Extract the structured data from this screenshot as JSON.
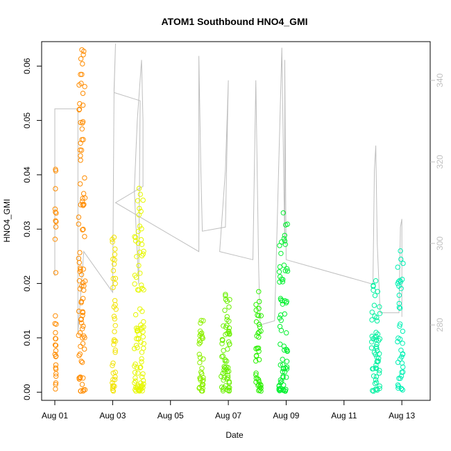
{
  "chart_data": {
    "type": "scatter",
    "title": "ATOM1 Southbound HNO4_GMI",
    "xlabel": "Date",
    "ylabel": "HNO4_GMI",
    "x_ticks": [
      "Aug 01",
      "Aug 03",
      "Aug 05",
      "Aug 07",
      "Aug 09",
      "Aug 11",
      "Aug 13"
    ],
    "y_ticks": [
      "0.00",
      "0.01",
      "0.02",
      "0.03",
      "0.04",
      "0.05",
      "0.06"
    ],
    "y2_ticks": [
      "280",
      "300",
      "320",
      "340"
    ],
    "xlim": [
      0.0,
      12.5
    ],
    "ylim": [
      -0.0015,
      0.0645
    ],
    "y2lim": [
      261.5,
      349.5
    ],
    "y2_label_color": "#c0c0c0",
    "secondary_line_color": "#bebebe",
    "series": [
      {
        "color": "#FF8C00",
        "x_start": 0.0,
        "x_end": 0.05,
        "y_low": 0.0005,
        "y_high": 0.041,
        "density": 30
      },
      {
        "color": "#FF8C00",
        "x_start": 0.82,
        "x_end": 1.05,
        "y_low": 0.0002,
        "y_high": 0.063,
        "density": 90
      },
      {
        "color": "#F2E300",
        "x_start": 1.98,
        "x_end": 2.12,
        "y_low": 0.0002,
        "y_high": 0.0285,
        "density": 40
      },
      {
        "color": "#E6F700",
        "x_start": 2.75,
        "x_end": 3.08,
        "y_low": 0.0002,
        "y_high": 0.0375,
        "density": 90
      },
      {
        "color": "#8CF000",
        "x_start": 4.98,
        "x_end": 5.15,
        "y_low": 0.0002,
        "y_high": 0.0132,
        "density": 35
      },
      {
        "color": "#6AF000",
        "x_start": 5.75,
        "x_end": 6.05,
        "y_low": 0.0002,
        "y_high": 0.018,
        "density": 60
      },
      {
        "color": "#2BF000",
        "x_start": 6.95,
        "x_end": 7.15,
        "y_low": 0.0002,
        "y_high": 0.0185,
        "density": 40
      },
      {
        "color": "#00F02E",
        "x_start": 7.75,
        "x_end": 8.05,
        "y_low": 0.0002,
        "y_high": 0.033,
        "density": 70
      },
      {
        "color": "#00F0A0",
        "x_start": 10.95,
        "x_end": 11.25,
        "y_low": 0.0002,
        "y_high": 0.0205,
        "density": 55
      },
      {
        "color": "#00F0B4",
        "x_start": 11.85,
        "x_end": 12.05,
        "y_low": 0.0002,
        "y_high": 0.026,
        "density": 40
      }
    ],
    "secondary_series": {
      "axis": "right",
      "points": [
        [
          0.0,
          292
        ],
        [
          0.0,
          333
        ],
        [
          0.8,
          333
        ],
        [
          0.8,
          278
        ],
        [
          1.0,
          298
        ],
        [
          2.0,
          288
        ],
        [
          2.05,
          338
        ],
        [
          2.1,
          349
        ],
        [
          2.05,
          337
        ],
        [
          2.95,
          335
        ],
        [
          2.9,
          290
        ],
        [
          2.75,
          313
        ],
        [
          2.85,
          330
        ],
        [
          3.0,
          345
        ],
        [
          3.05,
          330
        ],
        [
          3.05,
          314
        ],
        [
          2.1,
          310
        ],
        [
          4.98,
          298
        ],
        [
          4.98,
          346
        ],
        [
          5.05,
          318
        ],
        [
          5.1,
          303
        ],
        [
          5.9,
          304
        ],
        [
          6.0,
          340
        ],
        [
          5.9,
          318
        ],
        [
          5.7,
          298
        ],
        [
          6.85,
          296
        ],
        [
          6.95,
          340
        ],
        [
          7.05,
          294
        ],
        [
          7.1,
          280
        ],
        [
          7.6,
          281
        ],
        [
          7.85,
          348
        ],
        [
          7.95,
          300
        ],
        [
          7.95,
          345
        ],
        [
          8.0,
          296
        ],
        [
          11.0,
          290
        ],
        [
          11.05,
          318
        ],
        [
          11.1,
          324
        ],
        [
          11.15,
          300
        ],
        [
          11.25,
          283
        ],
        [
          11.9,
          283
        ],
        [
          11.95,
          304
        ],
        [
          12.0,
          306
        ],
        [
          12.0,
          282
        ]
      ]
    }
  }
}
